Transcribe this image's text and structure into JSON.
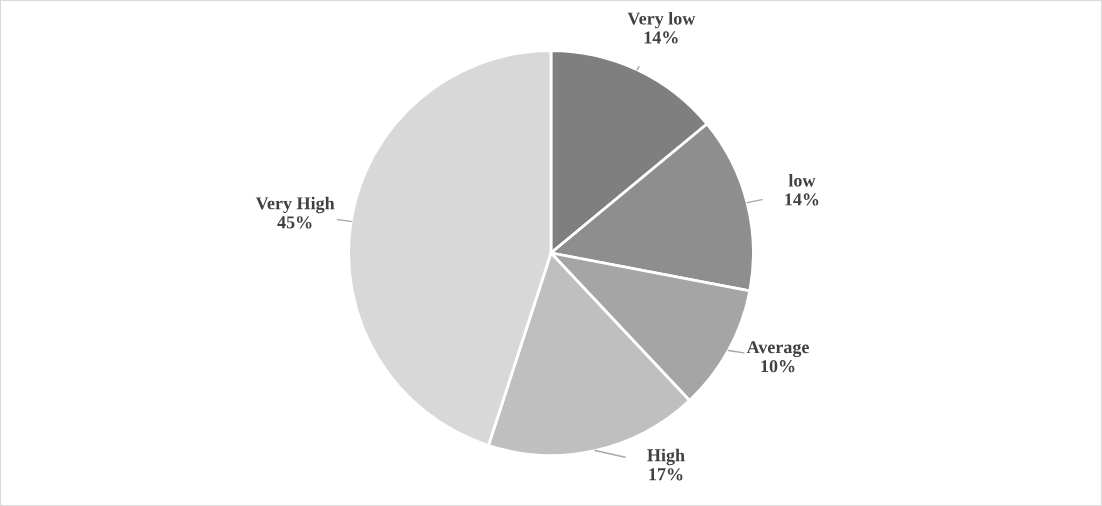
{
  "chart_data": {
    "type": "pie",
    "categories": [
      "Very low",
      "low",
      "Average",
      "High",
      "Very High"
    ],
    "values": [
      14,
      14,
      10,
      17,
      45
    ],
    "colors": [
      "#7f7f7f",
      "#8e8e8e",
      "#a5a5a5",
      "#bfbfbf",
      "#d8d8d8"
    ],
    "value_labels": [
      "14%",
      "14%",
      "10%",
      "17%",
      "45%"
    ],
    "legend": false
  }
}
